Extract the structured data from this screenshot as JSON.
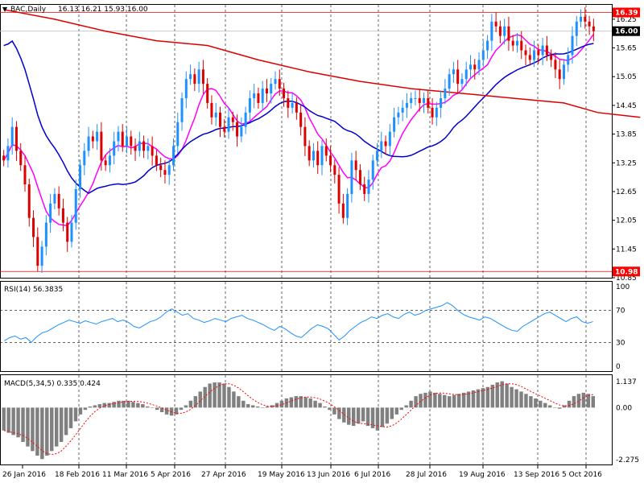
{
  "header": {
    "symbol_label": "BAC,Daily",
    "ohlc_label": "16.13 16.21 15.93 16.00"
  },
  "chart_data": [
    {
      "type": "candlestick",
      "panel": "price",
      "title": "BAC,Daily  16.13 16.21 15.93 16.00",
      "ylim": [
        10.85,
        16.55
      ],
      "y_ticks": [
        "16.25",
        "15.65",
        "15.05",
        "14.45",
        "13.85",
        "13.25",
        "12.65",
        "12.05",
        "11.45",
        "10.85"
      ],
      "price_badges": [
        {
          "label": "16.39",
          "value": 16.39,
          "color": "#ff0000"
        },
        {
          "label": "16.00",
          "value": 16.0,
          "color": "#000000"
        },
        {
          "label": "10.98",
          "value": 10.98,
          "color": "#ff0000"
        }
      ],
      "horizontal_lines": [
        {
          "value": 16.39,
          "color": "#ff0000"
        },
        {
          "value": 10.98,
          "color": "#ff0000"
        },
        {
          "value": 16.0,
          "color": "#c0c0c0"
        }
      ],
      "up_color": "#1e90ff",
      "down_color": "#dd0000",
      "closes": [
        13.3,
        13.6,
        14.0,
        13.5,
        13.2,
        12.8,
        12.1,
        11.7,
        11.1,
        11.5,
        12.0,
        12.4,
        12.6,
        12.3,
        12.0,
        11.6,
        12.0,
        12.7,
        13.2,
        13.5,
        13.8,
        13.7,
        13.9,
        13.3,
        13.2,
        13.4,
        13.7,
        13.9,
        13.6,
        13.8,
        13.6,
        13.5,
        13.7,
        13.5,
        13.6,
        13.4,
        13.2,
        13.1,
        13.0,
        13.2,
        13.6,
        14.1,
        14.6,
        15.0,
        15.1,
        14.9,
        15.2,
        14.9,
        14.5,
        14.2,
        14.3,
        14.0,
        13.9,
        14.2,
        14.1,
        13.8,
        14.0,
        14.3,
        14.6,
        14.7,
        14.5,
        14.8,
        14.7,
        14.9,
        15.0,
        14.8,
        14.6,
        14.4,
        14.5,
        14.3,
        14.0,
        13.6,
        13.3,
        13.5,
        13.2,
        13.6,
        13.4,
        13.2,
        13.0,
        12.4,
        12.1,
        12.6,
        13.3,
        13.1,
        12.8,
        12.6,
        12.9,
        13.3,
        13.5,
        13.7,
        13.6,
        13.9,
        14.2,
        14.3,
        14.4,
        14.5,
        14.6,
        14.6,
        14.5,
        14.6,
        14.4,
        14.2,
        14.4,
        14.6,
        14.8,
        15.1,
        15.2,
        14.9,
        15.0,
        15.2,
        15.3,
        15.2,
        15.4,
        15.6,
        15.8,
        16.2,
        16.1,
        15.9,
        16.1,
        15.8,
        15.7,
        15.8,
        15.6,
        15.5,
        15.4,
        15.6,
        15.5,
        15.7,
        15.5,
        15.4,
        15.2,
        15.0,
        15.3,
        15.5,
        15.9,
        16.2,
        16.3,
        16.2,
        16.1,
        16.0
      ],
      "series": [
        {
          "name": "",
          "color": "#ff00ff",
          "description": "short moving average"
        },
        {
          "name": "",
          "color": "#0000cd",
          "description": "medium moving average"
        },
        {
          "name": "",
          "color": "#dd0000",
          "description": "long moving average"
        }
      ],
      "long_ma_points": [
        [
          0,
          16.45
        ],
        [
          12,
          16.25
        ],
        [
          24,
          16.0
        ],
        [
          36,
          15.8
        ],
        [
          48,
          15.7
        ],
        [
          60,
          15.4
        ],
        [
          72,
          15.15
        ],
        [
          84,
          14.95
        ],
        [
          96,
          14.8
        ],
        [
          108,
          14.7
        ],
        [
          120,
          14.6
        ],
        [
          132,
          14.5
        ],
        [
          140,
          14.3
        ],
        [
          150,
          14.2
        ]
      ]
    },
    {
      "type": "line",
      "panel": "rsi",
      "title": "RSI(14) 56.3835",
      "ylim": [
        0,
        100
      ],
      "y_ticks": [
        "100",
        "70",
        "30",
        "0"
      ],
      "levels": [
        70,
        30
      ],
      "color": "#1e90ff",
      "values": [
        32,
        36,
        38,
        34,
        36,
        30,
        37,
        42,
        44,
        48,
        52,
        55,
        58,
        56,
        54,
        57,
        55,
        53,
        56,
        58,
        60,
        56,
        58,
        55,
        50,
        48,
        52,
        56,
        58,
        62,
        68,
        72,
        68,
        64,
        66,
        60,
        58,
        55,
        57,
        60,
        58,
        56,
        60,
        62,
        64,
        60,
        58,
        55,
        52,
        48,
        45,
        50,
        47,
        42,
        38,
        36,
        42,
        48,
        52,
        50,
        47,
        40,
        33,
        38,
        45,
        50,
        55,
        58,
        62,
        60,
        64,
        66,
        62,
        60,
        65,
        68,
        64,
        66,
        70,
        72,
        74,
        76,
        80,
        76,
        70,
        65,
        62,
        60,
        58,
        62,
        60,
        56,
        52,
        48,
        45,
        44,
        50,
        54,
        58,
        62,
        66,
        68,
        64,
        60,
        56,
        60,
        62,
        56,
        54,
        56
      ]
    },
    {
      "type": "bar",
      "panel": "macd",
      "title": "MACD(5,34,5) 0.335 0.424",
      "ylim": [
        -2.275,
        1.137
      ],
      "y_ticks": [
        "1.137",
        "0.00",
        "-2.275"
      ],
      "bar_color": "#808080",
      "signal_color": "#ff0000",
      "values": [
        -1.0,
        -1.1,
        -1.2,
        -1.3,
        -1.5,
        -1.7,
        -1.9,
        -2.1,
        -2.25,
        -2.1,
        -1.9,
        -1.7,
        -1.5,
        -1.2,
        -0.9,
        -0.6,
        -0.3,
        -0.1,
        0.05,
        0.1,
        0.15,
        0.2,
        0.2,
        0.25,
        0.3,
        0.3,
        0.3,
        0.25,
        0.2,
        0.15,
        0.05,
        0.0,
        -0.1,
        -0.2,
        -0.3,
        -0.35,
        -0.3,
        -0.1,
        0.1,
        0.3,
        0.5,
        0.7,
        0.9,
        1.05,
        1.1,
        1.1,
        1.05,
        0.9,
        0.7,
        0.5,
        0.3,
        0.15,
        0.1,
        0.05,
        0.0,
        0.05,
        0.1,
        0.2,
        0.3,
        0.4,
        0.45,
        0.5,
        0.5,
        0.45,
        0.4,
        0.3,
        0.2,
        0.05,
        -0.1,
        -0.3,
        -0.5,
        -0.65,
        -0.75,
        -0.8,
        -0.7,
        -0.6,
        -0.8,
        -0.9,
        -1.0,
        -0.85,
        -0.7,
        -0.5,
        -0.3,
        -0.1,
        0.1,
        0.3,
        0.5,
        0.6,
        0.65,
        0.7,
        0.65,
        0.6,
        0.55,
        0.5,
        0.55,
        0.6,
        0.65,
        0.7,
        0.75,
        0.8,
        0.85,
        0.9,
        1.0,
        1.1,
        1.15,
        1.05,
        0.9,
        0.8,
        0.7,
        0.6,
        0.5,
        0.4,
        0.3,
        0.2,
        0.1,
        0.0,
        -0.05,
        0.1,
        0.3,
        0.5,
        0.6,
        0.65,
        0.6,
        0.5
      ]
    }
  ],
  "x_axis": {
    "labels": [
      "26 Jan 2016",
      "18 Feb 2016",
      "11 Mar 2016",
      "5 Apr 2016",
      "27 Apr 2016",
      "19 May 2016",
      "13 Jun 2016",
      "6 Jul 2016",
      "28 Jul 2016",
      "19 Aug 2016",
      "13 Sep 2016",
      "5 Oct 2016"
    ]
  }
}
